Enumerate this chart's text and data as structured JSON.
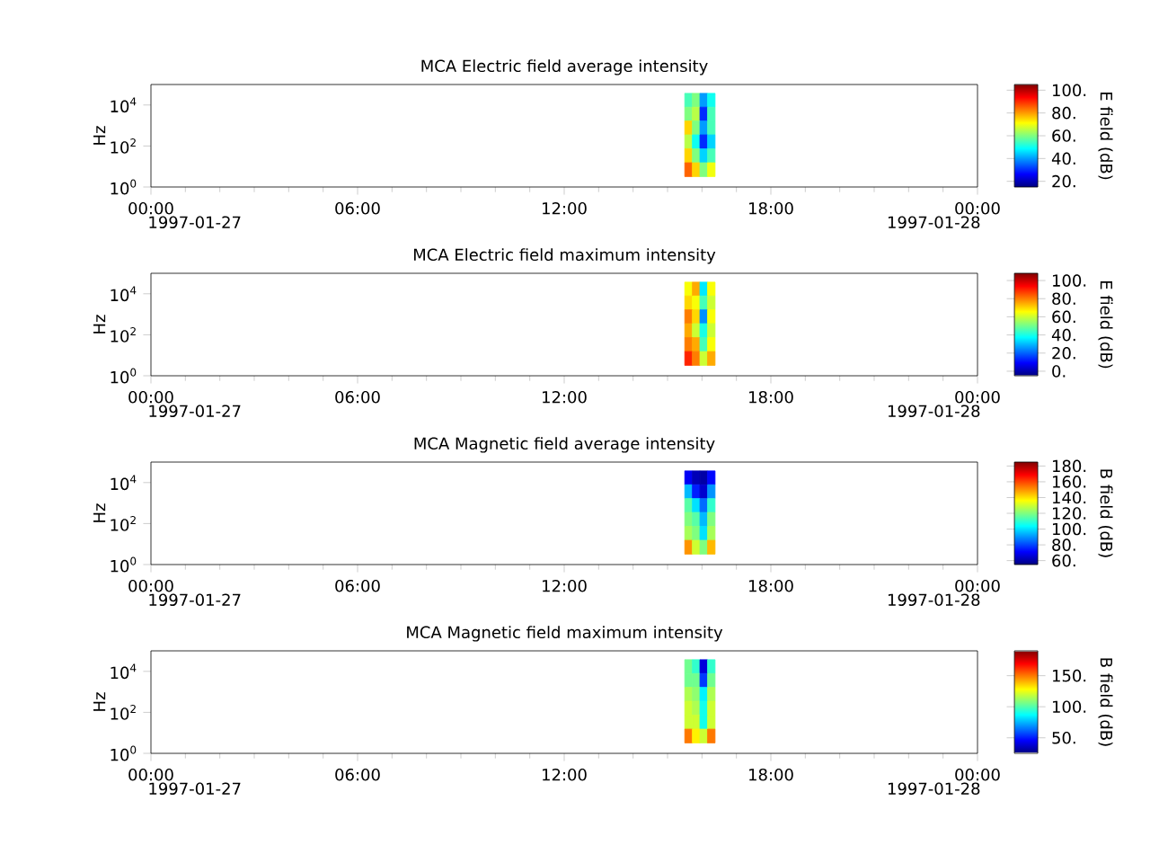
{
  "chart_data": [
    {
      "type": "heatmap",
      "title": "MCA  Electric field average intensity",
      "ylabel": "Hz",
      "clabel": "E field (dB)",
      "log": "y",
      "xlim": [
        0,
        24
      ],
      "xticks": [
        {
          "value": 0,
          "label": "00:00"
        },
        {
          "value": 6,
          "label": "06:00"
        },
        {
          "value": 12,
          "label": "12:00"
        },
        {
          "value": 18,
          "label": "18:00"
        },
        {
          "value": 24,
          "label": "00:00"
        }
      ],
      "ylim": [
        1,
        100000
      ],
      "yticks": [
        {
          "value": 1,
          "label": "10$^{0}$"
        },
        {
          "value": 100,
          "label": "10$^{2}$"
        },
        {
          "value": 10000,
          "label": "10$^{4}$"
        }
      ],
      "clim": [
        15,
        105
      ],
      "cticks": [
        {
          "value": 20,
          "label": "20."
        },
        {
          "value": 40,
          "label": "40."
        },
        {
          "value": 60,
          "label": "60."
        },
        {
          "value": 80,
          "label": "80."
        },
        {
          "value": 100,
          "label": "100."
        }
      ],
      "annotations": [
        "1997-01-27",
        "1997-01-28"
      ],
      "x": [
        15.61,
        15.83,
        16.05,
        16.27
      ],
      "y": [
        17000,
        3600,
        760,
        160,
        33,
        7
      ],
      "cells": [
        [
          55,
          60,
          40,
          50
        ],
        [
          60,
          65,
          30,
          55
        ],
        [
          75,
          60,
          40,
          55
        ],
        [
          65,
          50,
          30,
          45
        ],
        [
          75,
          60,
          45,
          55
        ],
        [
          85,
          75,
          60,
          70
        ]
      ]
    },
    {
      "type": "heatmap",
      "title": "MCA  Electric field maximum intensity",
      "ylabel": "Hz",
      "clabel": "E field (dB)",
      "log": "y",
      "xlim": [
        0,
        24
      ],
      "xticks": [
        {
          "value": 0,
          "label": "00:00"
        },
        {
          "value": 6,
          "label": "06:00"
        },
        {
          "value": 12,
          "label": "12:00"
        },
        {
          "value": 18,
          "label": "18:00"
        },
        {
          "value": 24,
          "label": "00:00"
        }
      ],
      "ylim": [
        1,
        100000
      ],
      "yticks": [
        {
          "value": 1,
          "label": "10$^{0}$"
        },
        {
          "value": 100,
          "label": "10$^{2}$"
        },
        {
          "value": 10000,
          "label": "10$^{4}$"
        }
      ],
      "clim": [
        -5,
        108
      ],
      "cticks": [
        {
          "value": 0,
          "label": "0."
        },
        {
          "value": 20,
          "label": "20."
        },
        {
          "value": 40,
          "label": "40."
        },
        {
          "value": 60,
          "label": "60."
        },
        {
          "value": 80,
          "label": "80."
        },
        {
          "value": 100,
          "label": "100."
        }
      ],
      "annotations": [
        "1997-01-27",
        "1997-01-28"
      ],
      "x": [
        15.61,
        15.83,
        16.05,
        16.27
      ],
      "y": [
        17000,
        3600,
        760,
        160,
        33,
        7
      ],
      "cells": [
        [
          65,
          75,
          35,
          65
        ],
        [
          70,
          65,
          45,
          60
        ],
        [
          80,
          70,
          25,
          65
        ],
        [
          75,
          60,
          40,
          60
        ],
        [
          80,
          75,
          45,
          65
        ],
        [
          90,
          80,
          60,
          75
        ]
      ]
    },
    {
      "type": "heatmap",
      "title": "MCA  Magnetic field average intensity",
      "ylabel": "Hz",
      "clabel": "B field (dB)",
      "log": "y",
      "xlim": [
        0,
        24
      ],
      "xticks": [
        {
          "value": 0,
          "label": "00:00"
        },
        {
          "value": 6,
          "label": "06:00"
        },
        {
          "value": 12,
          "label": "12:00"
        },
        {
          "value": 18,
          "label": "18:00"
        },
        {
          "value": 24,
          "label": "00:00"
        }
      ],
      "ylim": [
        1,
        100000
      ],
      "yticks": [
        {
          "value": 1,
          "label": "10$^{0}$"
        },
        {
          "value": 100,
          "label": "10$^{2}$"
        },
        {
          "value": 10000,
          "label": "10$^{4}$"
        }
      ],
      "clim": [
        55,
        185
      ],
      "cticks": [
        {
          "value": 60,
          "label": "60."
        },
        {
          "value": 80,
          "label": "80."
        },
        {
          "value": 100,
          "label": "100."
        },
        {
          "value": 120,
          "label": "120."
        },
        {
          "value": 140,
          "label": "140."
        },
        {
          "value": 160,
          "label": "160."
        },
        {
          "value": 180,
          "label": "180."
        }
      ],
      "annotations": [
        "1997-01-27",
        "1997-01-28"
      ],
      "x": [
        15.61,
        15.83,
        16.05,
        16.27
      ],
      "y": [
        17000,
        3600,
        760,
        160,
        33,
        7
      ],
      "cells": [
        [
          70,
          62,
          60,
          72
        ],
        [
          95,
          75,
          65,
          90
        ],
        [
          115,
          100,
          85,
          110
        ],
        [
          120,
          115,
          95,
          120
        ],
        [
          125,
          120,
          100,
          125
        ],
        [
          150,
          130,
          120,
          145
        ]
      ]
    },
    {
      "type": "heatmap",
      "title": "MCA  Magnetic field maximum intensity",
      "ylabel": "Hz",
      "clabel": "B field (dB)",
      "log": "y",
      "xlim": [
        0,
        24
      ],
      "xticks": [
        {
          "value": 0,
          "label": "00:00"
        },
        {
          "value": 6,
          "label": "06:00"
        },
        {
          "value": 12,
          "label": "12:00"
        },
        {
          "value": 18,
          "label": "18:00"
        },
        {
          "value": 24,
          "label": "00:00"
        }
      ],
      "ylim": [
        1,
        100000
      ],
      "yticks": [
        {
          "value": 1,
          "label": "10$^{0}$"
        },
        {
          "value": 100,
          "label": "10$^{2}$"
        },
        {
          "value": 10000,
          "label": "10$^{4}$"
        }
      ],
      "clim": [
        25,
        190
      ],
      "cticks": [
        {
          "value": 50,
          "label": "50."
        },
        {
          "value": 100,
          "label": "100."
        },
        {
          "value": 150,
          "label": "150."
        }
      ],
      "annotations": [
        "1997-01-27",
        "1997-01-28"
      ],
      "x": [
        15.61,
        15.83,
        16.05,
        16.27
      ],
      "y": [
        17000,
        3600,
        760,
        160,
        33,
        7
      ],
      "cells": [
        [
          105,
          95,
          40,
          95
        ],
        [
          105,
          105,
          55,
          105
        ],
        [
          115,
          110,
          85,
          115
        ],
        [
          120,
          115,
          90,
          120
        ],
        [
          120,
          120,
          90,
          120
        ],
        [
          150,
          130,
          120,
          150
        ]
      ]
    }
  ]
}
